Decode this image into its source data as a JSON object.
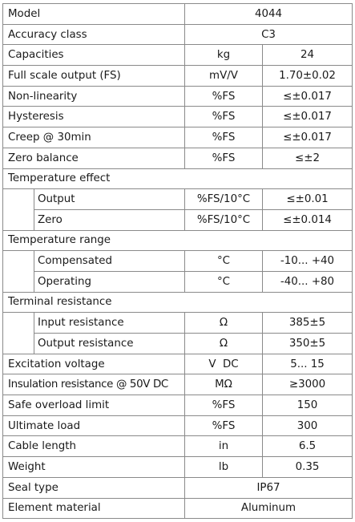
{
  "rows": [
    {
      "label": "Model",
      "value": "4044"
    },
    {
      "label": "Accuracy class",
      "value": "C3"
    },
    {
      "label": "Capacities",
      "unit": "kg",
      "value": "24"
    },
    {
      "label": "Full scale output (FS)",
      "unit": "mV/V",
      "value": "1.70±0.02"
    },
    {
      "label": "Non-linearity",
      "unit": "%FS",
      "value": "≤±0.017"
    },
    {
      "label": "Hysteresis",
      "unit": "%FS",
      "value": "≤±0.017"
    },
    {
      "label": "Creep @ 30min",
      "unit": "%FS",
      "value": "≤±0.017"
    },
    {
      "label": "Zero balance",
      "unit": "%FS",
      "value": "≤±2"
    },
    {
      "label": "Temperature effect"
    },
    {
      "label": "Output",
      "unit": "%FS/10°C",
      "value": "≤±0.01"
    },
    {
      "label": "Zero",
      "unit": "%FS/10°C",
      "value": "≤±0.014"
    },
    {
      "label": "Temperature range"
    },
    {
      "label": "Compensated",
      "unit": "°C",
      "value": "-10... +40"
    },
    {
      "label": "Operating",
      "unit": "°C",
      "value": "-40... +80"
    },
    {
      "label": "Terminal resistance"
    },
    {
      "label": "Input resistance",
      "unit": "Ω",
      "value": "385±5"
    },
    {
      "label": "Output resistance",
      "unit": "Ω",
      "value": "350±5"
    },
    {
      "label": "Excitation voltage",
      "unit": "V  DC",
      "value": "5... 15"
    },
    {
      "label": "Insulation resistance @ 50V DC",
      "unit": "MΩ",
      "value": "≥3000"
    },
    {
      "label": "Safe overload limit",
      "unit": "%FS",
      "value": "150"
    },
    {
      "label": "Ultimate load",
      "unit": "%FS",
      "value": "300"
    },
    {
      "label": "Cable length",
      "unit": "in",
      "value": "6.5"
    },
    {
      "label": "Weight",
      "unit": "lb",
      "value": "0.35"
    },
    {
      "label": "Seal type",
      "value": "IP67"
    },
    {
      "label": "Element material",
      "value": "Aluminum"
    }
  ]
}
